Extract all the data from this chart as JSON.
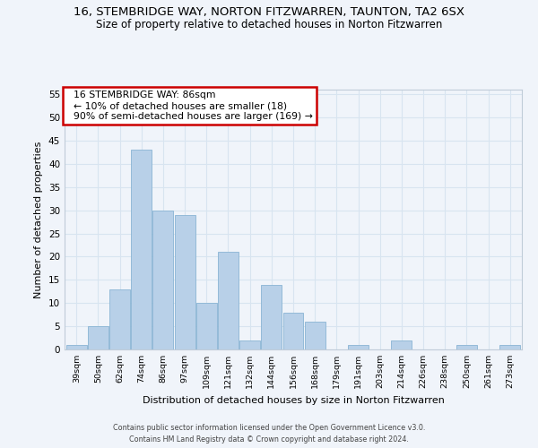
{
  "title": "16, STEMBRIDGE WAY, NORTON FITZWARREN, TAUNTON, TA2 6SX",
  "subtitle": "Size of property relative to detached houses in Norton Fitzwarren",
  "xlabel": "Distribution of detached houses by size in Norton Fitzwarren",
  "ylabel": "Number of detached properties",
  "bin_labels": [
    "39sqm",
    "50sqm",
    "62sqm",
    "74sqm",
    "86sqm",
    "97sqm",
    "109sqm",
    "121sqm",
    "132sqm",
    "144sqm",
    "156sqm",
    "168sqm",
    "179sqm",
    "191sqm",
    "203sqm",
    "214sqm",
    "226sqm",
    "238sqm",
    "250sqm",
    "261sqm",
    "273sqm"
  ],
  "bar_heights": [
    1,
    5,
    13,
    43,
    30,
    29,
    10,
    21,
    2,
    14,
    8,
    6,
    0,
    1,
    0,
    2,
    0,
    0,
    1,
    0,
    1
  ],
  "bar_color": "#b8d0e8",
  "bar_edge_color": "#8ab4d4",
  "ylim": [
    0,
    56
  ],
  "yticks": [
    0,
    5,
    10,
    15,
    20,
    25,
    30,
    35,
    40,
    45,
    50,
    55
  ],
  "annotation_title": "16 STEMBRIDGE WAY: 86sqm",
  "annotation_line1": "← 10% of detached houses are smaller (18)",
  "annotation_line2": "90% of semi-detached houses are larger (169) →",
  "annotation_box_color": "#ffffff",
  "annotation_box_edge": "#cc0000",
  "footnote1": "Contains HM Land Registry data © Crown copyright and database right 2024.",
  "footnote2": "Contains public sector information licensed under the Open Government Licence v3.0.",
  "grid_color": "#d8e4f0",
  "background_color": "#f0f4fa"
}
